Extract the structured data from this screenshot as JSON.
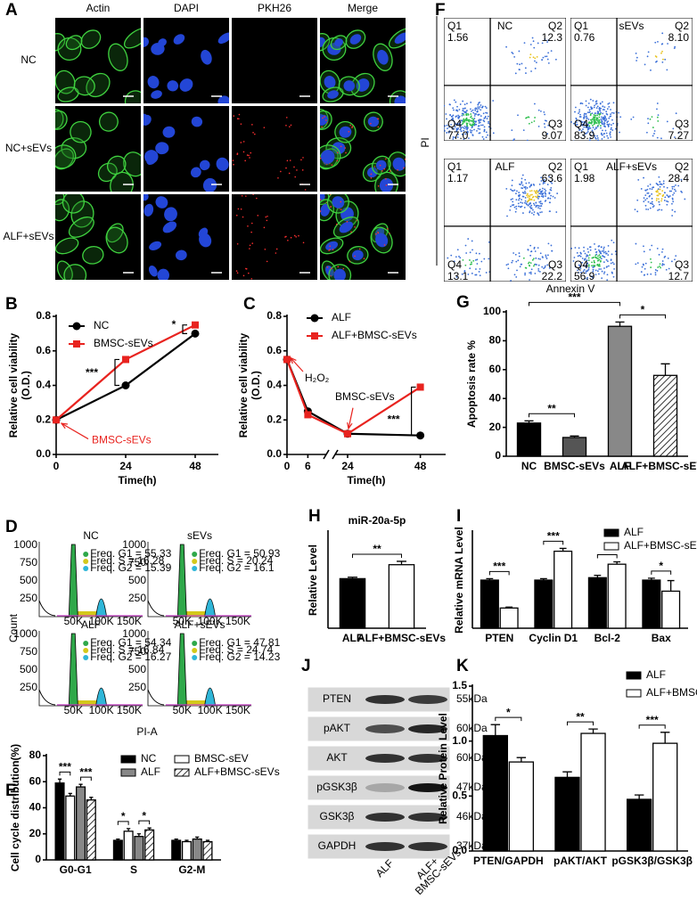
{
  "panels": {
    "A": {
      "label": "A",
      "columns": [
        "Actin",
        "DAPI",
        "PKH26",
        "Merge"
      ],
      "rows": [
        "NC",
        "NC+sEVs",
        "ALF+sEVs"
      ]
    },
    "D": {
      "label": "D",
      "ylabel": "Count",
      "xlabel": "PI-A",
      "yticklabels": [
        "1000",
        "750",
        "500",
        "250"
      ],
      "xticklabels": [
        "50K",
        "100K",
        "150K"
      ],
      "plots": [
        {
          "title": "NC",
          "freq": [
            "Freq. G1 = 55.33",
            "Freq. S = 16.28",
            "Freq. G2 = 15.39"
          ]
        },
        {
          "title": "sEVs",
          "freq": [
            "Freq. G1 = 50.93",
            "Freq. S = 20.24",
            "Freq. G2 = 16.1"
          ]
        },
        {
          "title": "ALF",
          "freq": [
            "Freq. G1 = 54.34",
            "Freq. S = 16.84",
            "Freq. G2 = 16.27"
          ]
        },
        {
          "title": "ALF+sEVs",
          "freq": [
            "Freq. G1 = 47.81",
            "Freq. S = 24.74",
            "Freq. G2 = 14.23"
          ]
        }
      ]
    },
    "F": {
      "label": "F",
      "ylabel": "PI",
      "xlabel": "Annexin V",
      "quadrants": [
        "Q1",
        "Q2",
        "Q3",
        "Q4"
      ],
      "plots": [
        {
          "title": "NC",
          "values": [
            "1.56",
            "12.3",
            "9.07",
            "77.0"
          ]
        },
        {
          "title": "sEVs",
          "values": [
            "0.76",
            "8.10",
            "7.27",
            "83.9"
          ]
        },
        {
          "title": "ALF",
          "values": [
            "1.17",
            "63.6",
            "22.2",
            "13.1"
          ]
        },
        {
          "title": "ALF+sEVs",
          "values": [
            "1.98",
            "28.4",
            "12.7",
            "56.9"
          ]
        }
      ]
    },
    "J": {
      "label": "J",
      "rows": [
        {
          "protein": "PTEN",
          "size": "55kDa"
        },
        {
          "protein": "pAKT",
          "size": "60kDa"
        },
        {
          "protein": "AKT",
          "size": "60kDa"
        },
        {
          "protein": "pGSK3β",
          "size": "47kDa"
        },
        {
          "protein": "GSK3β",
          "size": "46kDa"
        },
        {
          "protein": "GAPDH",
          "size": "37kDa"
        }
      ],
      "columns": [
        {
          "lines": [
            "ALF"
          ]
        },
        {
          "lines": [
            "ALF+",
            "BMSC-sEVs"
          ]
        }
      ]
    }
  },
  "chart_data": [
    {
      "panel_label": "B",
      "type": "line",
      "ylabel": [
        "Relative cell viability",
        "(O.D.)"
      ],
      "xlabel": "Time(h)",
      "x": [
        0,
        24,
        48
      ],
      "xlim": [
        0,
        56
      ],
      "xticks": [
        0,
        24,
        48
      ],
      "ylim": [
        0,
        0.8
      ],
      "yticks": [
        {
          "value": 0,
          "label": "0.0"
        },
        0.2,
        0.4,
        0.6,
        0.8
      ],
      "series": [
        {
          "name": "NC",
          "color": "#000000",
          "marker": "circle",
          "values": [
            0.2,
            0.4,
            0.7
          ]
        },
        {
          "name": "BMSC-sEVs",
          "color": "#e8231f",
          "marker": "square",
          "values": [
            0.2,
            0.55,
            0.75
          ]
        }
      ],
      "annotations": [
        "***",
        "*",
        "BMSC-sEVs"
      ]
    },
    {
      "panel_label": "C",
      "type": "line",
      "ylabel": [
        "Relative cell viability",
        "(O.D.)"
      ],
      "xlabel": "Time(h)",
      "x": [
        0,
        6,
        24,
        48
      ],
      "xticks": [
        0,
        6,
        24,
        48
      ],
      "axis_break": true,
      "ylim": [
        0,
        0.8
      ],
      "yticks": [
        {
          "value": 0,
          "label": "0.0"
        },
        0.2,
        0.4,
        0.6,
        0.8
      ],
      "series": [
        {
          "name": "ALF",
          "color": "#000000",
          "marker": "circle",
          "values": [
            0.55,
            0.25,
            0.12,
            0.11
          ]
        },
        {
          "name": "ALF+BMSC-sEVs",
          "color": "#e8231f",
          "marker": "square",
          "values": [
            0.55,
            0.23,
            0.12,
            0.39
          ]
        }
      ],
      "annotations": [
        "H₂O₂",
        "BMSC-sEVs",
        "***"
      ]
    },
    {
      "panel_label": "G",
      "type": "bar",
      "ylabel": "Apoptosis rate %",
      "categories": [
        "NC",
        "BMSC-sEVs",
        "ALF",
        "ALF+BMSC-sEVs"
      ],
      "values": [
        23,
        13,
        90,
        56
      ],
      "errors": [
        1.5,
        1,
        3,
        8
      ],
      "colors": [
        "#000000",
        "#555555",
        "#888888",
        "#ffffff"
      ],
      "hatch": [
        false,
        false,
        false,
        true
      ],
      "ylim": [
        0,
        100
      ],
      "yticks": [
        0,
        20,
        40,
        60,
        80,
        100
      ],
      "annotations": [
        "***",
        "**",
        "*"
      ]
    },
    {
      "panel_label": "E",
      "type": "bar",
      "ylabel": "Cell cycle distribution(%)",
      "categories": [
        "G0-G1",
        "S",
        "G2-M"
      ],
      "series": [
        {
          "name": "NC",
          "color": "#000000",
          "values": [
            59,
            15,
            15
          ],
          "errors": [
            3,
            1,
            1
          ]
        },
        {
          "name": "BMSC-sEV",
          "color": "#ffffff",
          "values": [
            49,
            22,
            14
          ],
          "errors": [
            2,
            2,
            1
          ]
        },
        {
          "name": "ALF",
          "color": "#888888",
          "values": [
            56,
            18,
            16
          ],
          "errors": [
            2,
            2,
            1.5
          ]
        },
        {
          "name": "ALF+BMSC-sEVs",
          "color": "#ffffff",
          "hatch": true,
          "values": [
            46,
            23,
            14
          ],
          "errors": [
            2,
            1.5,
            1
          ]
        }
      ],
      "ylim": [
        0,
        80
      ],
      "yticks": [
        0,
        20,
        40,
        60,
        80
      ],
      "annotations": [
        "***",
        "***",
        "*",
        "*"
      ]
    },
    {
      "panel_label": "H",
      "type": "bar",
      "title": "miR-20a-5p",
      "ylabel": "Relative Level",
      "categories": [
        "ALF",
        "ALF+BMSC-sEVs"
      ],
      "values": [
        1.03,
        1.32
      ],
      "errors": [
        0.03,
        0.07
      ],
      "colors": [
        "#000000",
        "#ffffff"
      ],
      "hatch": [
        false,
        false
      ],
      "ylim": [
        0,
        2
      ],
      "annotations": [
        "**"
      ]
    },
    {
      "panel_label": "I",
      "type": "bar",
      "ylabel": "Relative mRNA Level",
      "categories": [
        "PTEN",
        "Cyclin D1",
        "Bcl-2",
        "Bax"
      ],
      "series": [
        {
          "name": "ALF",
          "color": "#000000",
          "values": [
            1.0,
            1.0,
            1.05,
            1.0
          ],
          "errors": [
            0.03,
            0.03,
            0.05,
            0.04
          ]
        },
        {
          "name": "ALF+BMSC-sEVs",
          "color": "#ffffff",
          "values": [
            0.42,
            1.6,
            1.33,
            0.77
          ],
          "errors": [
            0.02,
            0.06,
            0.05,
            0.22
          ]
        }
      ],
      "ylim": [
        0,
        2
      ],
      "annotations": [
        "***",
        "***",
        "*",
        "*"
      ]
    },
    {
      "panel_label": "K",
      "type": "bar",
      "ylabel": "Relative Protein Level",
      "categories": [
        "PTEN/GAPDH",
        "pAKT/AKT",
        "pGSK3β/GSK3β"
      ],
      "series": [
        {
          "name": "ALF",
          "color": "#000000",
          "values": [
            1.05,
            0.67,
            0.47
          ],
          "errors": [
            0.1,
            0.05,
            0.04
          ]
        },
        {
          "name": "ALF+BMSC-sEVs",
          "color": "#ffffff",
          "values": [
            0.81,
            1.07,
            0.98
          ],
          "errors": [
            0.04,
            0.04,
            0.1
          ]
        }
      ],
      "ylim": [
        0,
        1.5
      ],
      "yticks": [
        {
          "value": 0,
          "label": "0.0"
        },
        0.5,
        {
          "value": 1,
          "label": "1.0"
        },
        1.5
      ],
      "annotations": [
        "*",
        "**",
        "***"
      ]
    }
  ]
}
